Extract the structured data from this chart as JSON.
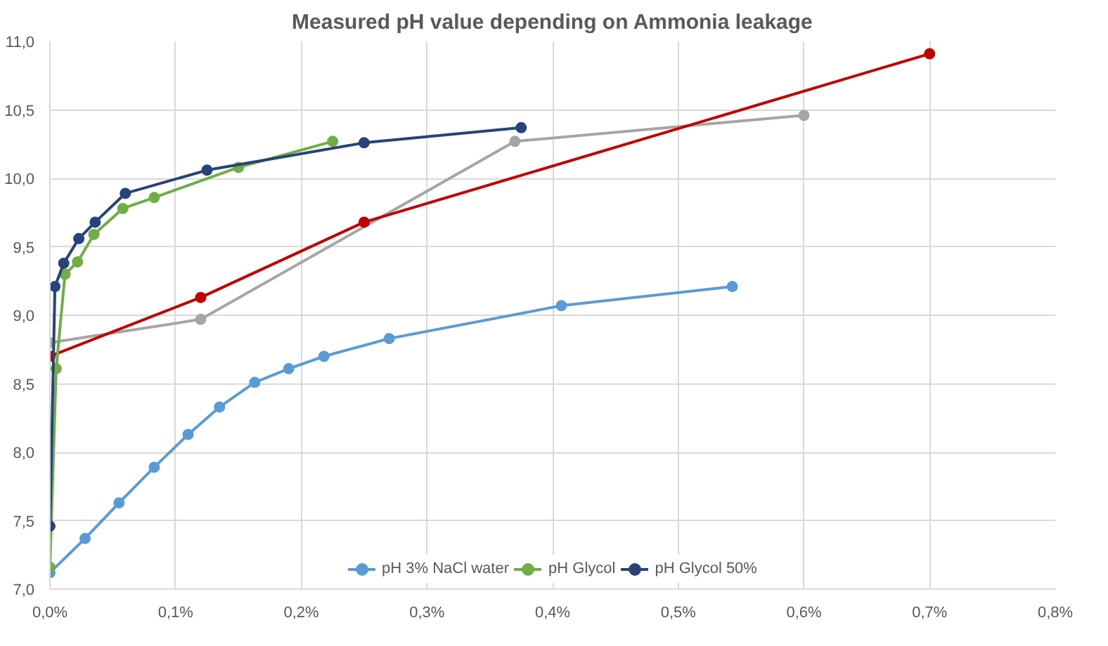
{
  "chart_data": {
    "type": "line",
    "title": "Measured pH value depending on Ammonia leakage",
    "xlim": [
      0,
      0.8
    ],
    "xticks": [
      {
        "value": 0,
        "label": "0,0%"
      },
      {
        "value": 0.1,
        "label": "0,1%"
      },
      {
        "value": 0.2,
        "label": "0,2%"
      },
      {
        "value": 0.3,
        "label": "0,3%"
      },
      {
        "value": 0.4,
        "label": "0,4%"
      },
      {
        "value": 0.5,
        "label": "0,5%"
      },
      {
        "value": 0.6,
        "label": "0,6%"
      },
      {
        "value": 0.7,
        "label": "0,7%"
      },
      {
        "value": 0.8,
        "label": "0,8%"
      }
    ],
    "ylim": [
      7.0,
      11.0
    ],
    "yticks": [
      {
        "value": 7.0,
        "label": "7,0"
      },
      {
        "value": 7.5,
        "label": "7,5"
      },
      {
        "value": 8.0,
        "label": "8,0"
      },
      {
        "value": 8.5,
        "label": "8,5"
      },
      {
        "value": 9.0,
        "label": "9,0"
      },
      {
        "value": 9.5,
        "label": "9,5"
      },
      {
        "value": 10.0,
        "label": "10,0"
      },
      {
        "value": 10.5,
        "label": "10,5"
      },
      {
        "value": 11.0,
        "label": "11,0"
      }
    ],
    "grid": true,
    "legend": "bottom",
    "marker": "circle",
    "series": [
      {
        "color": "#a5a5a5",
        "x": [
          0,
          0.12,
          0.37,
          0.6
        ],
        "values": [
          8.8,
          8.97,
          10.27,
          10.46
        ]
      },
      {
        "color": "#c00000",
        "x": [
          0,
          0.12,
          0.25,
          0.7
        ],
        "values": [
          8.7,
          9.13,
          9.68,
          10.91
        ]
      },
      {
        "name": "pH 3% NaCl water",
        "color": "#5b9bd5",
        "x": [
          0,
          0.028,
          0.055,
          0.083,
          0.11,
          0.135,
          0.163,
          0.19,
          0.218,
          0.27,
          0.407,
          0.543
        ],
        "values": [
          7.12,
          7.37,
          7.63,
          7.89,
          8.13,
          8.33,
          8.51,
          8.61,
          8.7,
          8.83,
          9.07,
          9.21
        ]
      },
      {
        "name": "pH Glycol",
        "color": "#70ad47",
        "x": [
          0,
          0.005,
          0.012,
          0.022,
          0.035,
          0.058,
          0.083,
          0.15,
          0.225
        ],
        "values": [
          7.16,
          8.61,
          9.3,
          9.39,
          9.59,
          9.78,
          9.86,
          10.08,
          10.27
        ]
      },
      {
        "name": "pH Glycol 50%",
        "color": "#264478",
        "x": [
          0,
          0.004,
          0.011,
          0.023,
          0.036,
          0.06,
          0.125,
          0.25,
          0.375
        ],
        "values": [
          7.46,
          9.21,
          9.38,
          9.56,
          9.68,
          9.89,
          10.06,
          10.26,
          10.37
        ]
      }
    ]
  }
}
